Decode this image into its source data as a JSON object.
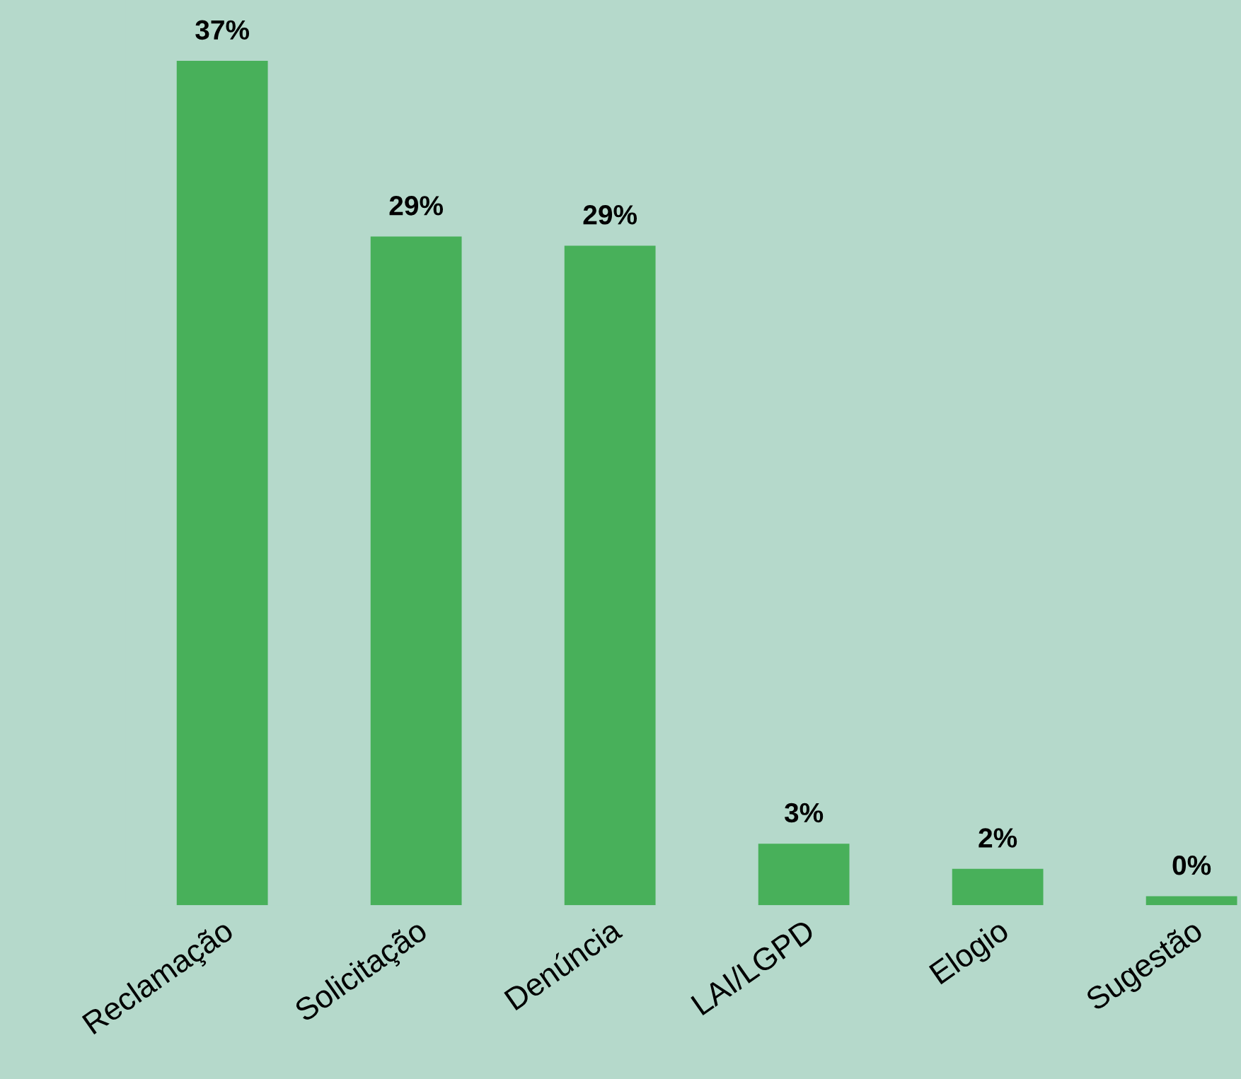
{
  "chart_data": {
    "type": "bar",
    "categories": [
      "Reclamação",
      "Solicitação",
      "Denúncia",
      "LAI/LGPD",
      "Elogio",
      "Sugestão"
    ],
    "values": [
      37,
      29.3,
      28.9,
      2.7,
      1.6,
      0.4
    ],
    "value_labels": [
      "37%",
      "29%",
      "29%",
      "3%",
      "2%",
      "0%"
    ],
    "color": "#48b05a",
    "grid": false,
    "legend": false
  }
}
